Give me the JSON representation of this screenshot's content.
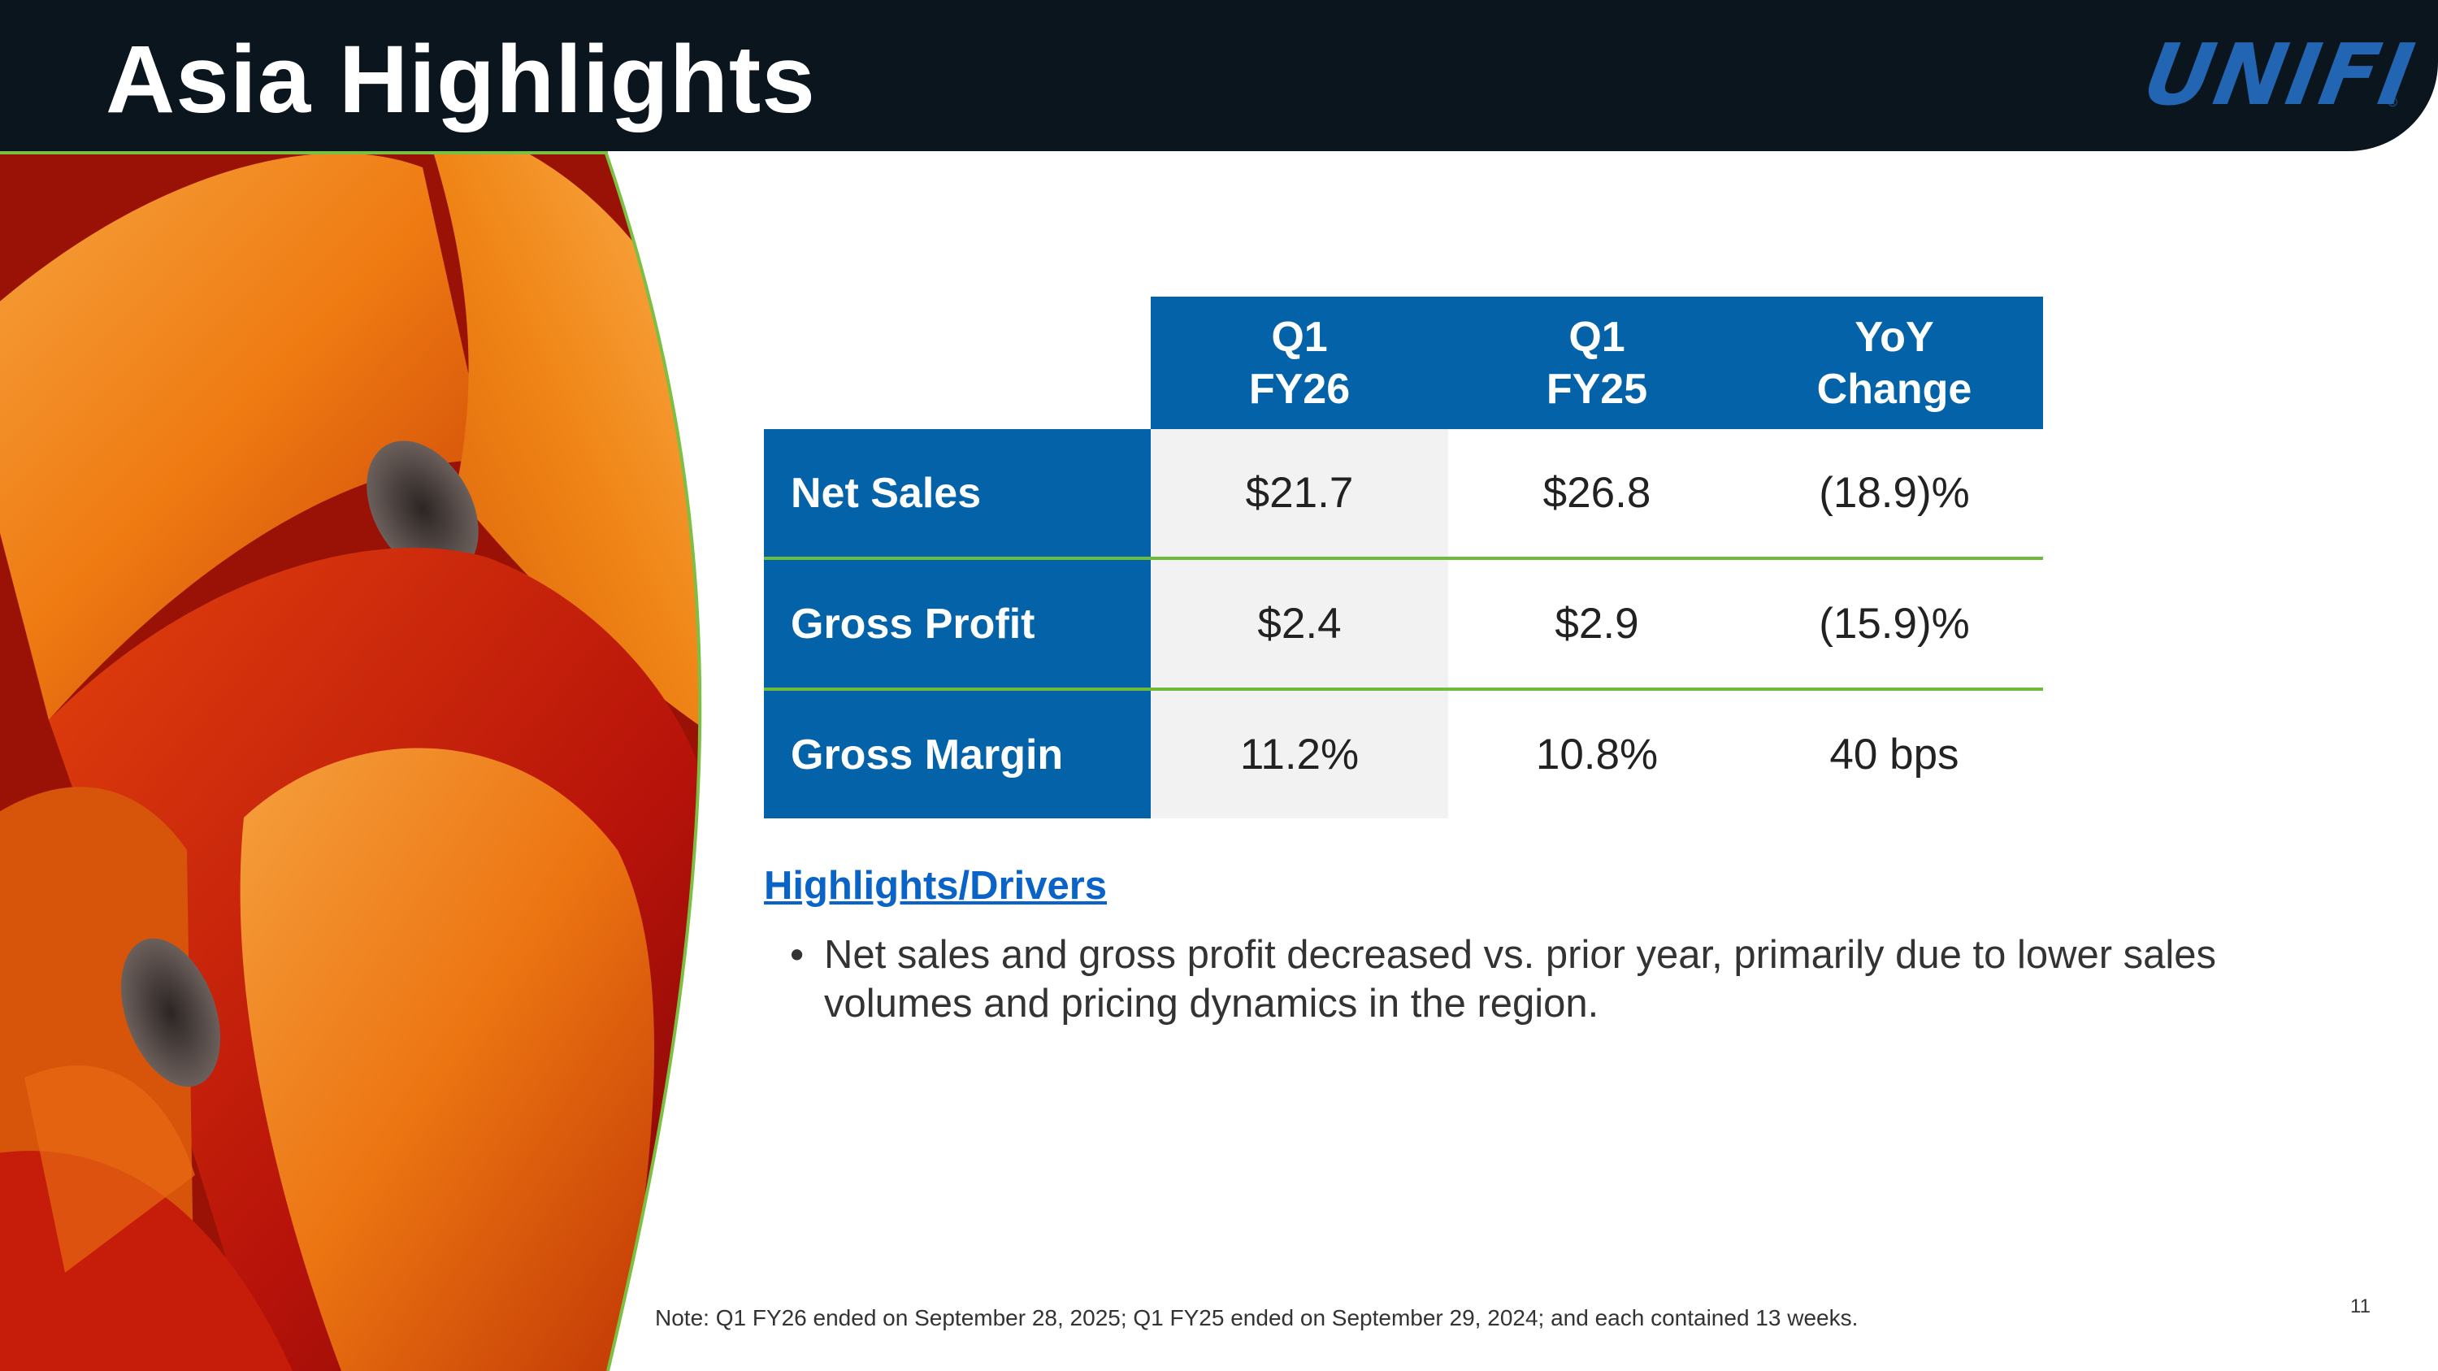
{
  "header": {
    "title": "Asia Highlights",
    "logo_text": "UNIFI",
    "logo_mark": "®"
  },
  "colors": {
    "header_bg": "#0b151e",
    "table_blue": "#0463a8",
    "accent_green": "#6cbb3c",
    "link_blue": "#0a63c6"
  },
  "table": {
    "columns": [
      {
        "line1": "Q1",
        "line2": "FY26"
      },
      {
        "line1": "Q1",
        "line2": "FY25"
      },
      {
        "line1": "YoY",
        "line2": "Change"
      }
    ],
    "rows": [
      {
        "label": "Net Sales",
        "values": [
          "$21.7",
          "$26.8",
          "(18.9)%"
        ]
      },
      {
        "label": "Gross Profit",
        "values": [
          "$2.4",
          "$2.9",
          "(15.9)%"
        ]
      },
      {
        "label": "Gross Margin",
        "values": [
          "11.2%",
          "10.8%",
          "40 bps"
        ]
      }
    ]
  },
  "highlights": {
    "heading": "Highlights/Drivers",
    "bullets": [
      "Net sales and gross profit decreased vs. prior year, primarily due to lower sales volumes and pricing dynamics in the region."
    ]
  },
  "footer": {
    "note": "Note: Q1 FY26 ended on September 28, 2025; Q1 FY25 ended on September 29, 2024; and each contained 13 weeks.",
    "page_number": "11"
  }
}
